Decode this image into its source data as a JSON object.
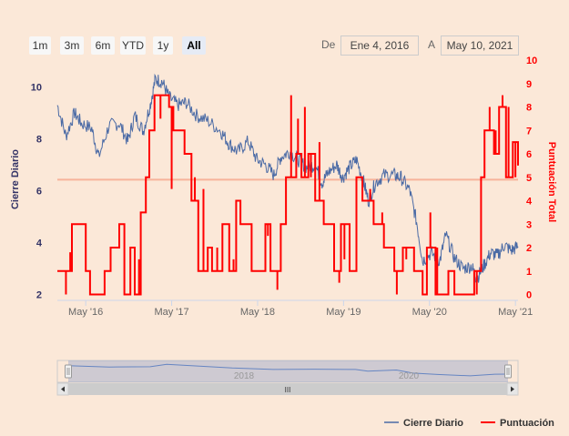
{
  "range_selector": {
    "buttons": [
      "1m",
      "3m",
      "6m",
      "YTD",
      "1y",
      "All"
    ],
    "active": "All",
    "from_label": "De",
    "from_value": "Ene 4, 2016",
    "to_label": "A",
    "to_value": "May 10, 2021"
  },
  "navigator": {
    "year_labels": [
      "2018",
      "2020"
    ],
    "scroll_grip": "III"
  },
  "colors": {
    "close": "#4a6aa5",
    "score": "#ff0000",
    "plotline": "#f7b39a",
    "left_axis": "#333366",
    "right_axis": "#ff0000"
  },
  "chart_data": {
    "type": "line",
    "title": "",
    "x_tick_labels": [
      "May '16",
      "May '17",
      "May '18",
      "May '19",
      "May '20",
      "May '21"
    ],
    "left_axis": {
      "title": "Cierre Diario",
      "ticks": [
        "2",
        "4",
        "6",
        "8",
        "10"
      ],
      "range": [
        2,
        10.5
      ]
    },
    "right_axis": {
      "title": "Puntuación Total",
      "ticks": [
        "0",
        "1",
        "2",
        "3",
        "4",
        "5",
        "6",
        "7",
        "8",
        "9",
        "10"
      ],
      "range": [
        0,
        10
      ]
    },
    "plot_line": {
      "axis": "right",
      "value": 4.9
    },
    "legend": [
      "Cierre Diario",
      "Puntuación"
    ],
    "series": [
      {
        "name": "Cierre Diario",
        "axis": "left",
        "points": [
          [
            2016.0,
            9.3
          ],
          [
            2016.1,
            8.1
          ],
          [
            2016.2,
            9.0
          ],
          [
            2016.28,
            8.6
          ],
          [
            2016.4,
            8.4
          ],
          [
            2016.48,
            7.3
          ],
          [
            2016.6,
            8.5
          ],
          [
            2016.72,
            8.6
          ],
          [
            2016.82,
            7.9
          ],
          [
            2016.9,
            8.9
          ],
          [
            2017.0,
            8.3
          ],
          [
            2017.08,
            9.3
          ],
          [
            2017.14,
            10.3
          ],
          [
            2017.22,
            10.2
          ],
          [
            2017.3,
            9.6
          ],
          [
            2017.4,
            9.3
          ],
          [
            2017.5,
            9.4
          ],
          [
            2017.62,
            8.9
          ],
          [
            2017.75,
            8.7
          ],
          [
            2017.9,
            8.3
          ],
          [
            2018.0,
            7.8
          ],
          [
            2018.1,
            7.5
          ],
          [
            2018.22,
            7.9
          ],
          [
            2018.32,
            7.2
          ],
          [
            2018.42,
            7.0
          ],
          [
            2018.52,
            6.6
          ],
          [
            2018.6,
            7.3
          ],
          [
            2018.7,
            7.5
          ],
          [
            2018.8,
            7.2
          ],
          [
            2018.9,
            6.9
          ],
          [
            2019.0,
            7.0
          ],
          [
            2019.08,
            6.3
          ],
          [
            2019.15,
            6.7
          ],
          [
            2019.25,
            7.0
          ],
          [
            2019.32,
            6.5
          ],
          [
            2019.4,
            6.9
          ],
          [
            2019.48,
            7.2
          ],
          [
            2019.56,
            6.4
          ],
          [
            2019.62,
            5.6
          ],
          [
            2019.7,
            6.3
          ],
          [
            2019.8,
            6.6
          ],
          [
            2019.92,
            6.6
          ],
          [
            2020.0,
            6.5
          ],
          [
            2020.1,
            6.0
          ],
          [
            2020.18,
            4.8
          ],
          [
            2020.25,
            3.3
          ],
          [
            2020.35,
            3.6
          ],
          [
            2020.45,
            3.3
          ],
          [
            2020.52,
            4.3
          ],
          [
            2020.62,
            3.4
          ],
          [
            2020.72,
            3.0
          ],
          [
            2020.82,
            3.1
          ],
          [
            2020.88,
            2.6
          ],
          [
            2020.96,
            3.1
          ],
          [
            2021.04,
            3.6
          ],
          [
            2021.12,
            3.5
          ],
          [
            2021.2,
            3.9
          ],
          [
            2021.28,
            3.7
          ],
          [
            2021.36,
            3.85
          ]
        ]
      },
      {
        "name": "Puntuación",
        "axis": "right",
        "steps": [
          [
            2016.0,
            1.0
          ],
          [
            2016.17,
            3.0
          ],
          [
            2016.33,
            1.0
          ],
          [
            2016.38,
            0.0
          ],
          [
            2016.55,
            1.0
          ],
          [
            2016.62,
            2.0
          ],
          [
            2016.72,
            3.0
          ],
          [
            2016.78,
            0.0
          ],
          [
            2016.85,
            2.0
          ],
          [
            2016.9,
            0.0
          ],
          [
            2016.97,
            3.5
          ],
          [
            2017.03,
            5.0
          ],
          [
            2017.07,
            7.0
          ],
          [
            2017.13,
            8.5
          ],
          [
            2017.3,
            8.0
          ],
          [
            2017.35,
            7.0
          ],
          [
            2017.48,
            6.0
          ],
          [
            2017.56,
            4.0
          ],
          [
            2017.64,
            1.0
          ],
          [
            2017.75,
            2.0
          ],
          [
            2017.8,
            1.0
          ],
          [
            2017.92,
            3.0
          ],
          [
            2018.0,
            1.0
          ],
          [
            2018.08,
            4.0
          ],
          [
            2018.13,
            3.0
          ],
          [
            2018.26,
            1.0
          ],
          [
            2018.42,
            3.0
          ],
          [
            2018.48,
            1.0
          ],
          [
            2018.6,
            3.0
          ],
          [
            2018.66,
            5.0
          ],
          [
            2018.78,
            6.0
          ],
          [
            2018.84,
            5.0
          ],
          [
            2018.92,
            6.0
          ],
          [
            2019.0,
            4.0
          ],
          [
            2019.1,
            3.0
          ],
          [
            2019.22,
            1.0
          ],
          [
            2019.3,
            3.0
          ],
          [
            2019.4,
            1.0
          ],
          [
            2019.48,
            5.0
          ],
          [
            2019.55,
            4.0
          ],
          [
            2019.68,
            3.0
          ],
          [
            2019.8,
            2.0
          ],
          [
            2019.92,
            1.0
          ],
          [
            2020.02,
            2.0
          ],
          [
            2020.15,
            1.0
          ],
          [
            2020.25,
            0.0
          ],
          [
            2020.3,
            2.0
          ],
          [
            2020.4,
            0.0
          ],
          [
            2020.55,
            1.0
          ],
          [
            2020.62,
            0.0
          ],
          [
            2020.85,
            1.0
          ],
          [
            2020.93,
            5.0
          ],
          [
            2020.97,
            7.0
          ],
          [
            2021.08,
            6.0
          ],
          [
            2021.14,
            8.0
          ],
          [
            2021.22,
            5.0
          ],
          [
            2021.3,
            6.5
          ],
          [
            2021.36,
            5.5
          ]
        ],
        "spikes": [
          [
            2016.1,
            0.0
          ],
          [
            2016.15,
            1.8
          ],
          [
            2016.95,
            1.5
          ],
          [
            2017.2,
            7.5
          ],
          [
            2017.33,
            4.5
          ],
          [
            2017.6,
            5.0
          ],
          [
            2017.7,
            4.5
          ],
          [
            2017.86,
            2.0
          ],
          [
            2018.05,
            1.5
          ],
          [
            2018.45,
            2.5
          ],
          [
            2018.56,
            0.2
          ],
          [
            2018.72,
            8.5
          ],
          [
            2018.8,
            7.5
          ],
          [
            2018.88,
            8.0
          ],
          [
            2018.95,
            5.0
          ],
          [
            2019.05,
            6.5
          ],
          [
            2019.28,
            0.5
          ],
          [
            2019.34,
            1.5
          ],
          [
            2019.52,
            5.0
          ],
          [
            2019.64,
            4.5
          ],
          [
            2019.78,
            3.5
          ],
          [
            2019.95,
            0.0
          ],
          [
            2020.06,
            1.5
          ],
          [
            2020.2,
            1.0
          ],
          [
            2020.34,
            3.5
          ],
          [
            2020.42,
            2.0
          ],
          [
            2020.88,
            0.0
          ],
          [
            2021.03,
            8.0
          ],
          [
            2021.1,
            7.0
          ],
          [
            2021.18,
            8.5
          ],
          [
            2021.25,
            8.0
          ],
          [
            2021.33,
            5.0
          ]
        ]
      }
    ],
    "navigator_series": [
      [
        2016.0,
        9.3
      ],
      [
        2016.5,
        8.4
      ],
      [
        2017.0,
        8.6
      ],
      [
        2017.2,
        10.2
      ],
      [
        2017.6,
        9.0
      ],
      [
        2018.0,
        7.8
      ],
      [
        2018.5,
        6.8
      ],
      [
        2019.0,
        7.0
      ],
      [
        2019.5,
        6.8
      ],
      [
        2019.65,
        5.7
      ],
      [
        2020.0,
        6.5
      ],
      [
        2020.2,
        4.5
      ],
      [
        2020.5,
        3.6
      ],
      [
        2020.9,
        2.7
      ],
      [
        2021.2,
        3.8
      ],
      [
        2021.36,
        3.85
      ]
    ]
  }
}
